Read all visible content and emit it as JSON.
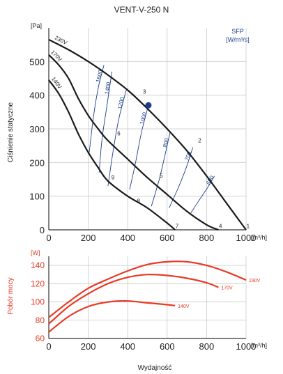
{
  "title": "VENT-V-250 N",
  "colors": {
    "curve": "#1a1a1a",
    "sfp": "#1a3e8c",
    "power": "#e83a25",
    "grid": "#c9c9c9",
    "point": "#1a3e8c"
  },
  "chart_data": [
    {
      "type": "line",
      "name": "pressure",
      "title": "VENT-V-250 N",
      "xlabel": "",
      "ylabel": "Ciśnienie statyczne",
      "y_unit": "[Pa]",
      "x_unit": "[m³/h]",
      "xlim": [
        0,
        1000
      ],
      "ylim": [
        0,
        600
      ],
      "x_ticks": [
        0,
        200,
        400,
        600,
        800,
        1000
      ],
      "y_ticks": [
        0,
        100,
        200,
        300,
        400,
        500
      ],
      "grid": true,
      "series": [
        {
          "name": "230V",
          "x": [
            0,
            100,
            200,
            300,
            400,
            500,
            600,
            700,
            800,
            900,
            1000
          ],
          "y": [
            565,
            535,
            500,
            460,
            415,
            360,
            300,
            235,
            160,
            80,
            0
          ]
        },
        {
          "name": "170V",
          "x": [
            0,
            50,
            100,
            150,
            200,
            250,
            300,
            400,
            500,
            600,
            700,
            800,
            860
          ],
          "y": [
            520,
            490,
            450,
            390,
            340,
            300,
            265,
            210,
            155,
            105,
            55,
            15,
            0
          ]
        },
        {
          "name": "140V",
          "x": [
            0,
            50,
            100,
            150,
            200,
            250,
            300,
            400,
            500,
            600,
            640
          ],
          "y": [
            445,
            405,
            350,
            285,
            230,
            185,
            145,
            100,
            65,
            20,
            0
          ]
        }
      ],
      "sfp": {
        "header": "SFP",
        "unit": "[W/m³/s]",
        "lines": [
          {
            "label": "1600",
            "x": [
              205,
              225,
              250,
              280
            ],
            "y": [
              230,
              330,
              420,
              490
            ]
          },
          {
            "label": "1400",
            "x": [
              255,
              270,
              295,
              320
            ],
            "y": [
              170,
              270,
              370,
              470
            ]
          },
          {
            "label": "1200",
            "x": [
              300,
              325,
              355,
              395
            ],
            "y": [
              130,
              230,
              330,
              420
            ]
          },
          {
            "label": "1000",
            "x": [
              410,
              440,
              470,
              505
            ],
            "y": [
              120,
              200,
              290,
              370
            ]
          },
          {
            "label": "800",
            "x": [
              520,
              560,
              590,
              615
            ],
            "y": [
              70,
              150,
              225,
              290
            ]
          },
          {
            "label": "700",
            "x": [
              610,
              660,
              700,
              730
            ],
            "y": [
              65,
              130,
              190,
              245
            ]
          },
          {
            "label": "600",
            "x": [
              720,
              770,
              810,
              840
            ],
            "y": [
              50,
              95,
              130,
              160
            ]
          }
        ]
      },
      "points": [
        {
          "label": "1",
          "x": 1010,
          "y": 5
        },
        {
          "label": "2",
          "x": 765,
          "y": 260
        },
        {
          "label": "3",
          "x": 485,
          "y": 405
        },
        {
          "label": "4",
          "x": 870,
          "y": 5
        },
        {
          "label": "5",
          "x": 570,
          "y": 155
        },
        {
          "label": "6",
          "x": 355,
          "y": 280
        },
        {
          "label": "7",
          "x": 650,
          "y": 5
        },
        {
          "label": "8",
          "x": 455,
          "y": 80
        },
        {
          "label": "9",
          "x": 325,
          "y": 150
        }
      ],
      "operating_point": {
        "x": 505,
        "y": 370
      }
    },
    {
      "type": "line",
      "name": "power",
      "title": "",
      "xlabel": "Wydajność",
      "ylabel": "Pobór mocy",
      "y_unit": "[W]",
      "x_unit": "[m³/h]",
      "xlim": [
        0,
        1000
      ],
      "ylim": [
        60,
        150
      ],
      "x_ticks": [
        0,
        200,
        400,
        600,
        800,
        1000
      ],
      "y_ticks": [
        60,
        80,
        100,
        120,
        140
      ],
      "grid": true,
      "series": [
        {
          "name": "230V",
          "x": [
            0,
            100,
            200,
            300,
            400,
            500,
            600,
            700,
            800,
            900,
            1000
          ],
          "y": [
            83,
            100,
            115,
            125,
            134,
            141,
            144,
            144,
            140,
            133,
            124
          ]
        },
        {
          "name": "170V",
          "x": [
            0,
            100,
            200,
            300,
            400,
            500,
            600,
            700,
            800,
            860
          ],
          "y": [
            76,
            95,
            109,
            120,
            127,
            130,
            129,
            126,
            121,
            116
          ]
        },
        {
          "name": "140V",
          "x": [
            0,
            100,
            200,
            300,
            400,
            500,
            600,
            640
          ],
          "y": [
            67,
            84,
            95,
            100,
            101,
            99,
            97,
            96
          ]
        }
      ]
    }
  ],
  "labels": {
    "pressure_unit": "[Pa]",
    "pressure_axis": "Ciśnienie statyczne",
    "flow_unit": "[m³/h]",
    "power_unit": "[W]",
    "power_axis": "Pobór mocy",
    "flow_axis": "Wydajność",
    "sfp_header": "SFP",
    "sfp_unit": "[W/m³/s]"
  }
}
